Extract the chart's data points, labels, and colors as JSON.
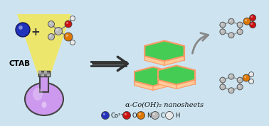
{
  "bg_color": "#cde4f0",
  "title": "α-Co(OH)₂ nanosheets",
  "ctab_label": "CTAB",
  "legend": [
    {
      "label": "Co²⁺",
      "color": "#2233bb"
    },
    {
      "label": "O",
      "color": "#cc1111"
    },
    {
      "label": "N",
      "color": "#dd7700"
    },
    {
      "label": "C",
      "color": "#bbbbbb"
    },
    {
      "label": "H",
      "color": "#e8e8e8"
    }
  ],
  "hex_color": "#44cc55",
  "hex_edge_color": "#ff9966",
  "flask_color": "#cc99ee",
  "flask_edge": "#444444",
  "figw": 3.78,
  "figh": 1.78,
  "dpi": 100
}
